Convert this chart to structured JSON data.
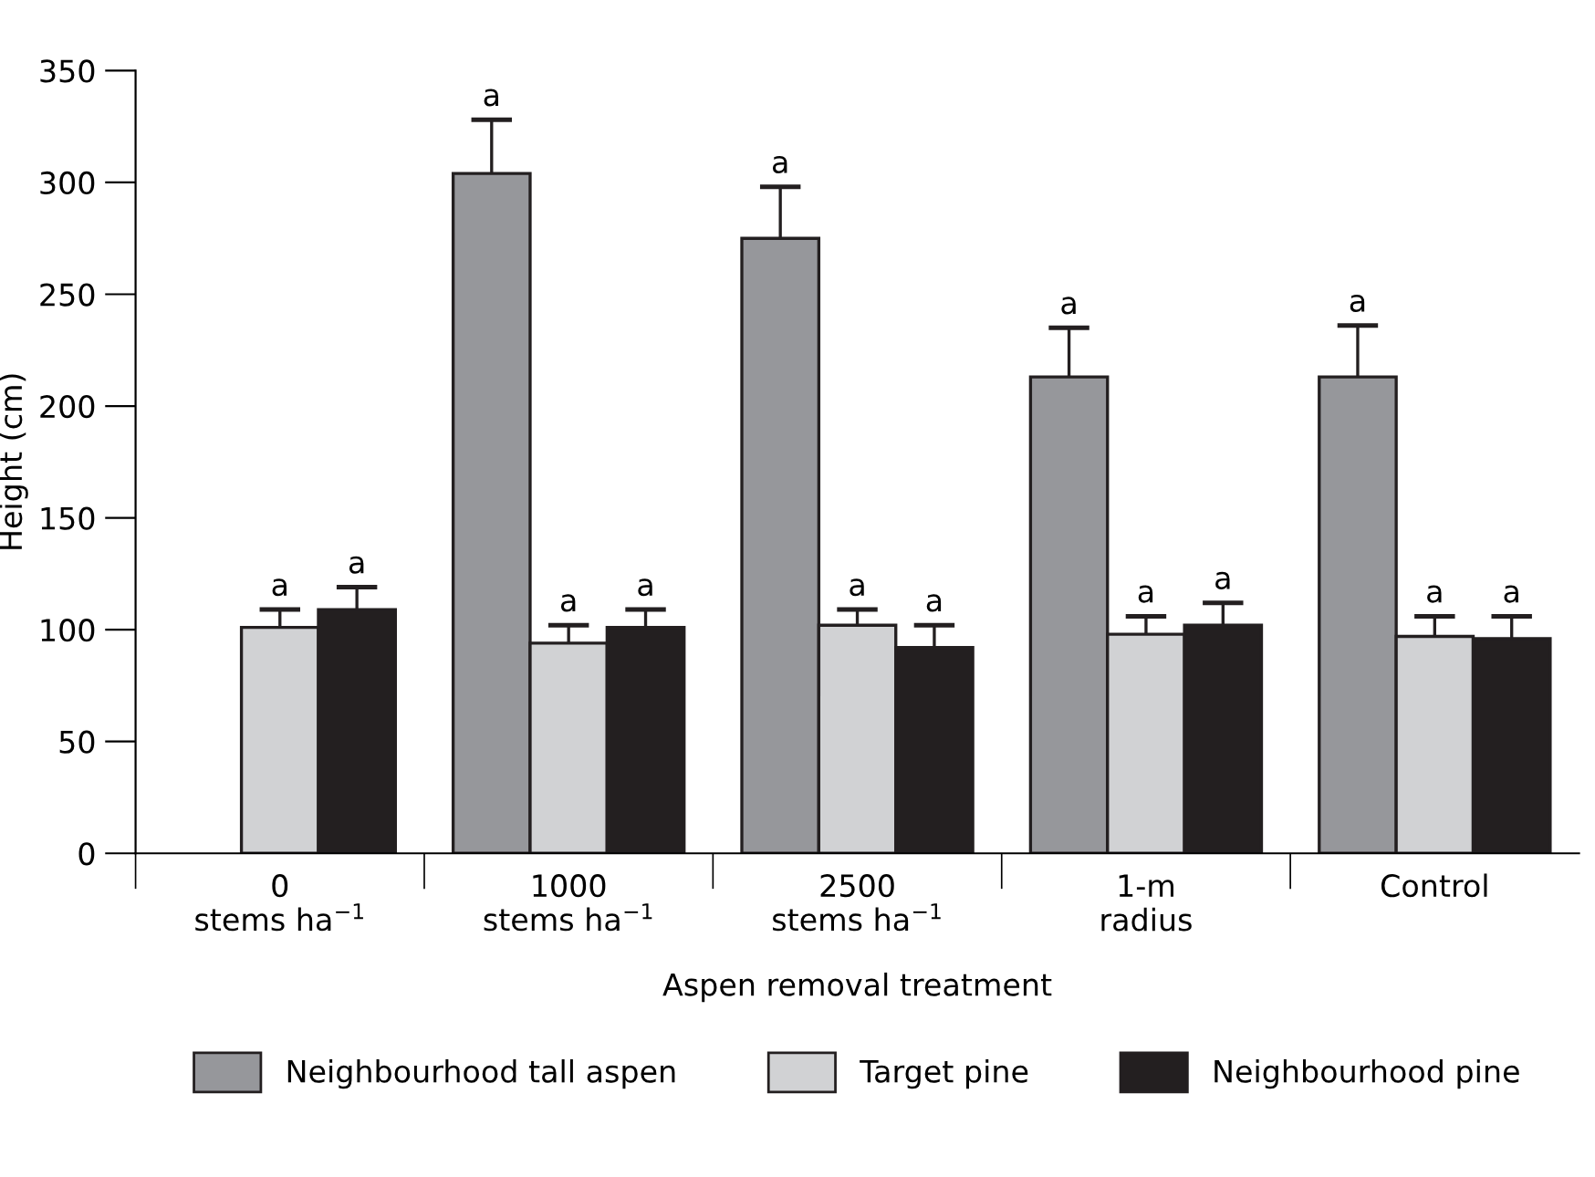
{
  "chart_data": {
    "type": "bar",
    "xlabel": "Aspen removal treatment",
    "ylabel": "Height (cm)",
    "categories": [
      "0\nstems ha$^{−1}$",
      "1000\nstems ha$^{−1}$",
      "2500\nstems ha$^{−1}$",
      "1-m\nradius",
      "Control"
    ],
    "series": [
      {
        "name": "Neighbourhood tall aspen",
        "color": "#96979b",
        "values": [
          null,
          304,
          275,
          213,
          213
        ],
        "errors": [
          null,
          24,
          23,
          22,
          23
        ],
        "value_labels": [
          null,
          "a",
          "a",
          "a",
          "a"
        ]
      },
      {
        "name": "Target pine",
        "color": "#d1d2d4",
        "values": [
          101,
          94,
          102,
          98,
          97
        ],
        "errors": [
          8,
          8,
          7,
          8,
          9
        ],
        "value_labels": [
          "a",
          "a",
          "a",
          "a",
          "a"
        ]
      },
      {
        "name": "Neighbourhood pine",
        "color": "#231f20",
        "values": [
          109,
          101,
          92,
          102,
          96
        ],
        "errors": [
          10,
          8,
          10,
          10,
          10
        ],
        "value_labels": [
          "a",
          "a",
          "a",
          "a",
          "a"
        ]
      }
    ],
    "ylim": [
      0,
      350
    ],
    "yticks": [
      0,
      50,
      100,
      150,
      200,
      250,
      300,
      350
    ],
    "grid": false,
    "legend": "bottom"
  }
}
